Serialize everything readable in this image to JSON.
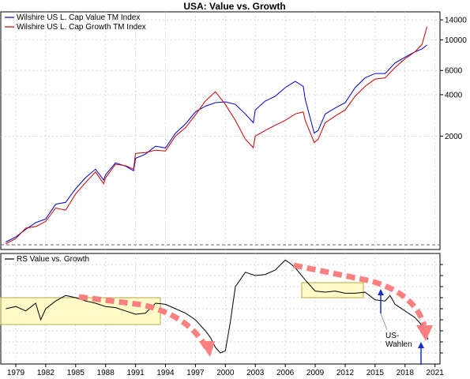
{
  "chart_data": [
    {
      "type": "line",
      "title": "USA: Value vs. Growth",
      "y_scale": "log",
      "ylim": [
        300,
        16000
      ],
      "xlim": [
        1977.5,
        2021.5
      ],
      "y_ticks": [
        {
          "value": 2000,
          "label": "2000"
        },
        {
          "value": 4000,
          "label": "4000"
        },
        {
          "value": 6000,
          "label": "6000"
        },
        {
          "value": 10000,
          "label": "10000"
        },
        {
          "value": 14000,
          "label": "14000"
        }
      ],
      "legend_position": "top-left",
      "grid": true,
      "series": [
        {
          "name": "Wilshire US L. Cap Value TM Index",
          "color": "#0000cc",
          "x": [
            1978,
            1979,
            1980,
            1981,
            1982,
            1983,
            1984,
            1985,
            1986,
            1987,
            1987.8,
            1988,
            1989,
            1990,
            1990.8,
            1991,
            1992,
            1993,
            1994,
            1995,
            1996,
            1997,
            1998,
            1999,
            2000,
            2001,
            2002,
            2002.8,
            2003,
            2004,
            2005,
            2006,
            2007,
            2007.8,
            2008,
            2008.9,
            2009.3,
            2010,
            2011,
            2012,
            2013,
            2014,
            2015,
            2016,
            2017,
            2018,
            2019,
            2019.7,
            2020.2
          ],
          "values": [
            340,
            370,
            420,
            470,
            500,
            640,
            660,
            830,
            1000,
            1150,
            960,
            1050,
            1280,
            1210,
            1120,
            1380,
            1480,
            1690,
            1640,
            2100,
            2450,
            3000,
            3300,
            3500,
            3550,
            3400,
            2900,
            2500,
            3100,
            3600,
            3900,
            4500,
            5000,
            4600,
            3700,
            2100,
            2200,
            2900,
            3200,
            3500,
            4500,
            5300,
            5700,
            5700,
            6800,
            7500,
            8200,
            8600,
            9200
          ]
        },
        {
          "name": "Wilshire US L. Cap Growth TM Index",
          "color": "#cc0000",
          "x": [
            1978,
            1979,
            1980,
            1981,
            1982,
            1983,
            1984,
            1985,
            1986,
            1987,
            1987.8,
            1988,
            1989,
            1990,
            1990.8,
            1991,
            1992,
            1993,
            1994,
            1995,
            1996,
            1997,
            1998,
            1999,
            2000,
            2001,
            2002,
            2002.8,
            2003,
            2004,
            2005,
            2006,
            2007,
            2007.8,
            2008,
            2008.9,
            2009.3,
            2010,
            2011,
            2012,
            2013,
            2014,
            2015,
            2016,
            2017,
            2018,
            2019,
            2019.7,
            2020.2
          ],
          "values": [
            330,
            360,
            430,
            440,
            480,
            600,
            580,
            760,
            920,
            1100,
            900,
            1000,
            1250,
            1220,
            1150,
            1500,
            1520,
            1580,
            1560,
            2000,
            2300,
            2850,
            3600,
            4200,
            3400,
            2600,
            1900,
            1650,
            2000,
            2200,
            2400,
            2600,
            2900,
            3000,
            2600,
            1800,
            1900,
            2500,
            2800,
            3100,
            3900,
            4600,
            5200,
            5300,
            6300,
            7300,
            8200,
            9300,
            12500
          ]
        }
      ]
    },
    {
      "type": "line",
      "legend_position": "top-left",
      "grid": true,
      "ylim": [
        0.5,
        1.5
      ],
      "x_ticks": [
        1979,
        1982,
        1985,
        1988,
        1991,
        1994,
        1997,
        2000,
        2003,
        2006,
        2009,
        2012,
        2015,
        2018,
        2021
      ],
      "series": [
        {
          "name": "RS Value vs. Growth",
          "color": "#000000",
          "x": [
            1978,
            1979,
            1980,
            1981,
            1981.5,
            1982,
            1983,
            1984,
            1985,
            1986,
            1987,
            1988,
            1989,
            1990,
            1991,
            1992,
            1993,
            1994,
            1995,
            1996,
            1997,
            1998,
            1998.5,
            1999,
            1999.5,
            2000,
            2000.5,
            2001,
            2002,
            2003,
            2004,
            2005,
            2006,
            2006.5,
            2007,
            2008,
            2009,
            2010,
            2011,
            2012,
            2013,
            2014,
            2015,
            2016,
            2016.5,
            2017,
            2018,
            2019,
            2019.5,
            2020,
            2020.3
          ],
          "values": [
            1.0,
            1.02,
            0.98,
            1.05,
            0.9,
            1.0,
            1.07,
            1.12,
            1.1,
            1.07,
            1.05,
            1.02,
            1.01,
            0.98,
            0.95,
            0.96,
            1.05,
            1.04,
            1.0,
            0.96,
            0.9,
            0.8,
            0.74,
            0.65,
            0.6,
            0.62,
            0.88,
            1.2,
            1.33,
            1.3,
            1.31,
            1.35,
            1.44,
            1.41,
            1.37,
            1.26,
            1.16,
            1.15,
            1.16,
            1.14,
            1.14,
            1.15,
            1.08,
            1.07,
            1.12,
            1.04,
            0.98,
            0.92,
            0.87,
            0.8,
            0.72
          ]
        }
      ],
      "annotations": [
        {
          "text": "US-",
          "x": 2017.2,
          "y": 0.85
        },
        {
          "text": "Wahlen",
          "x": 2017.2,
          "y": 0.8
        }
      ]
    }
  ]
}
